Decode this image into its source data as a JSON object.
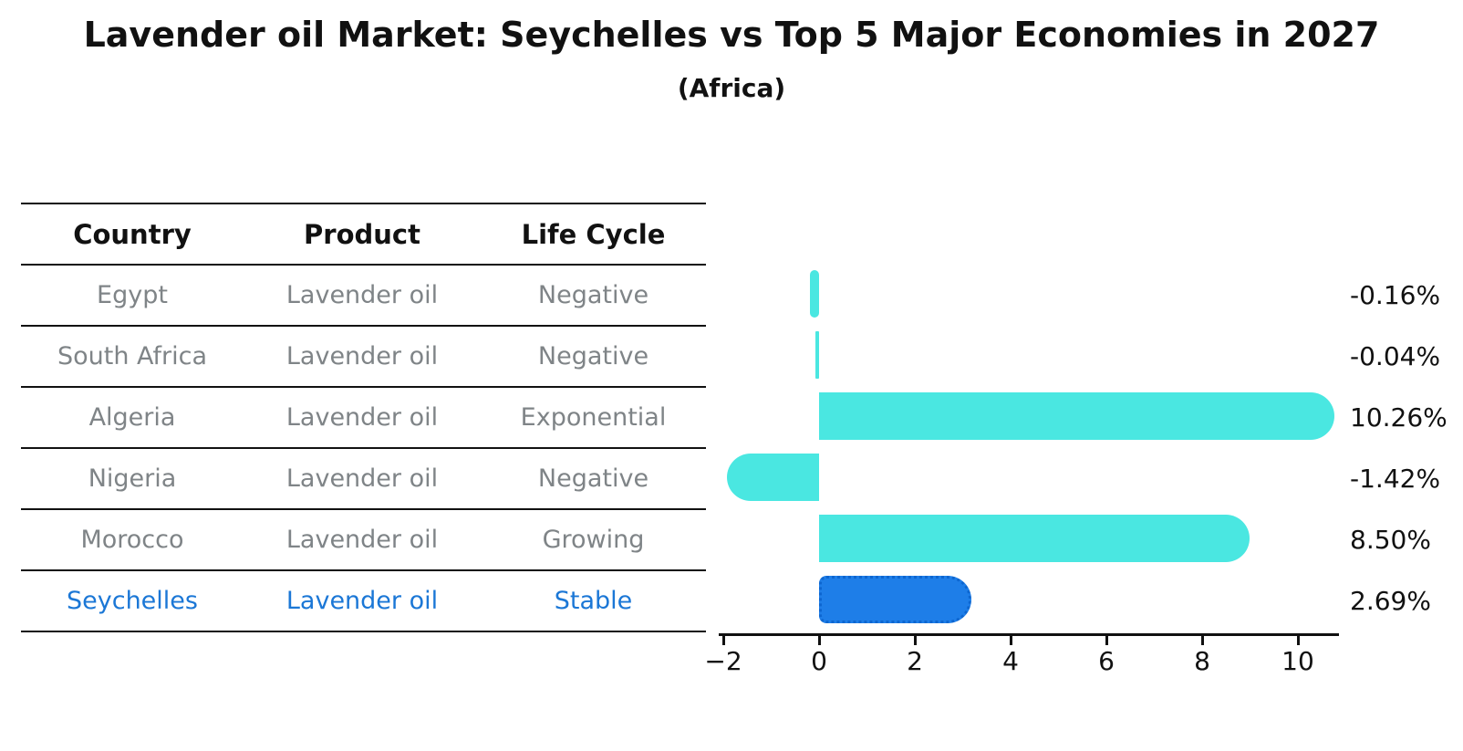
{
  "chart_data": {
    "type": "bar",
    "orientation": "horizontal",
    "title": "Lavender oil Market: Seychelles vs Top 5 Major Economies in 2027",
    "subtitle": "(Africa)",
    "table_headers": [
      "Country",
      "Product",
      "Life Cycle"
    ],
    "categories": [
      "Egypt",
      "South Africa",
      "Algeria",
      "Nigeria",
      "Morocco",
      "Seychelles"
    ],
    "values": [
      -0.16,
      -0.04,
      10.26,
      -1.42,
      8.5,
      2.69
    ],
    "value_labels": [
      "-0.16%",
      "-0.04%",
      "10.26%",
      "-1.42%",
      "8.50%",
      "2.69%"
    ],
    "rows": [
      {
        "country": "Egypt",
        "product": "Lavender oil",
        "life_cycle": "Negative",
        "value": -0.16,
        "value_label": "-0.16%",
        "highlighted": false
      },
      {
        "country": "South Africa",
        "product": "Lavender oil",
        "life_cycle": "Negative",
        "value": -0.04,
        "value_label": "-0.04%",
        "highlighted": false
      },
      {
        "country": "Algeria",
        "product": "Lavender oil",
        "life_cycle": "Exponential",
        "value": 10.26,
        "value_label": "10.26%",
        "highlighted": false
      },
      {
        "country": "Nigeria",
        "product": "Lavender oil",
        "life_cycle": "Negative",
        "value": -1.42,
        "value_label": "-1.42%",
        "highlighted": false
      },
      {
        "country": "Morocco",
        "product": "Lavender oil",
        "life_cycle": "Growing",
        "value": 8.5,
        "value_label": "8.50%",
        "highlighted": false
      },
      {
        "country": "Seychelles",
        "product": "Lavender oil",
        "life_cycle": "Stable",
        "value": 2.69,
        "value_label": "2.69%",
        "highlighted": true
      }
    ],
    "highlight_category": "Seychelles",
    "x_ticks": {
      "values": [
        -2,
        0,
        2,
        4,
        6,
        8,
        10
      ],
      "labels": [
        "−2",
        "0",
        "2",
        "4",
        "6",
        "8",
        "10"
      ]
    },
    "xlim": [
      -2.1,
      10.85
    ],
    "grid": false,
    "legend": null,
    "colors": {
      "bar": "#4AE7E1",
      "highlight_bar": "#1E7EE8",
      "highlight_border": "#0D66D0",
      "highlight_text": "#1B77D6",
      "row_text": "#7F8487",
      "axis": "#111111",
      "background": "#FFFFFF"
    }
  }
}
